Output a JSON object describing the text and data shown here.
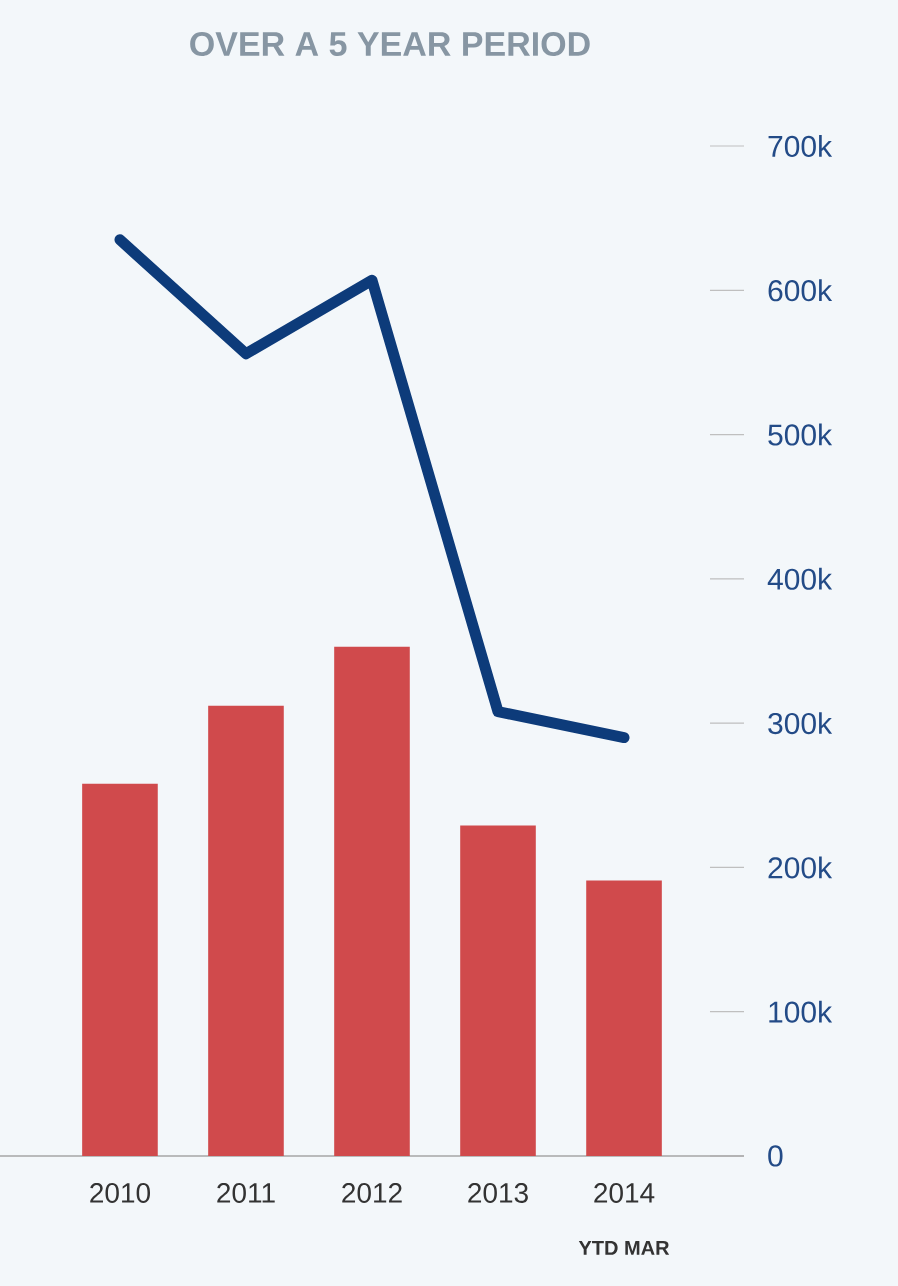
{
  "chart_data": {
    "type": "bar",
    "title": "OVER A 5 YEAR PERIOD",
    "categories": [
      "2010",
      "2011",
      "2012",
      "2013",
      "2014"
    ],
    "series": [
      {
        "color": "#d04a4c",
        "values": [
          258000,
          312000,
          353000,
          229000,
          191000
        ]
      },
      {
        "type": "line",
        "color": "#0d3b7a",
        "values": [
          635000,
          556000,
          607000,
          308000,
          290000
        ]
      }
    ],
    "ylim": [
      0,
      700000
    ],
    "yticks": [
      {
        "value": 0,
        "label": "0"
      },
      {
        "value": 100000,
        "label": "100k"
      },
      {
        "value": 200000,
        "label": "200k"
      },
      {
        "value": 300000,
        "label": "300k"
      },
      {
        "value": 400000,
        "label": "400k"
      },
      {
        "value": 500000,
        "label": "500k"
      },
      {
        "value": 600000,
        "label": "600k"
      },
      {
        "value": 700000,
        "label": "700k"
      }
    ],
    "annotations": [
      "YTD MAR"
    ],
    "grid": false,
    "marker": "none",
    "line_style": "solid"
  }
}
